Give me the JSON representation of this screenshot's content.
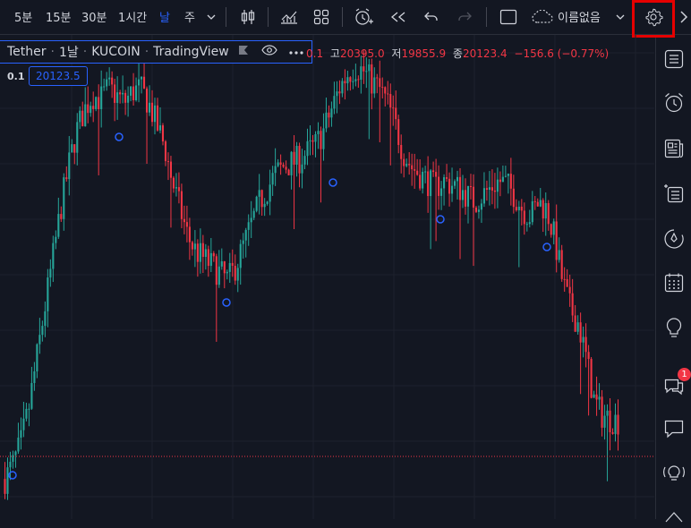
{
  "toolbar": {
    "timeframes": [
      "5분",
      "15분",
      "30분",
      "1시간",
      "날",
      "주"
    ],
    "active_timeframe": "날",
    "layout_name": "이름없음"
  },
  "legend": {
    "symbol": "Tether",
    "interval": "1날",
    "exchange": "KUCOIN",
    "source": "TradingView"
  },
  "ohlc": {
    "open_tail": "0.1",
    "high_label": "고",
    "high_value": "20395.0",
    "low_label": "저",
    "low_value": "19855.9",
    "close_label": "종",
    "close_value": "20123.4",
    "change": "−156.6 (−0.77%)"
  },
  "indicator": {
    "label": "0.1",
    "value": "20123.5"
  },
  "rightbar": {
    "notification_count": "1",
    "icons": [
      "watchlist-icon",
      "alarm-clock-icon",
      "news-icon",
      "data-window-icon",
      "hotlist-icon",
      "calendar-icon",
      "ideas-icon",
      "chat-icon",
      "messages-icon",
      "streams-icon"
    ]
  },
  "chart_data": {
    "type": "candlestick",
    "series_name": "Tether 1날 KUCOIN",
    "last_price": 20123.4,
    "close_path": [
      19300,
      19500,
      19800,
      20300,
      21000,
      21700,
      22400,
      23100,
      23700,
      24200,
      24500,
      24700,
      24650,
      24800,
      24700,
      24600,
      24750,
      24800,
      24600,
      24300,
      24000,
      23500,
      23100,
      22700,
      22500,
      22400,
      22300,
      22200,
      22100,
      22300,
      22600,
      22900,
      23200,
      23400,
      23600,
      23700,
      23750,
      23800,
      23900,
      24000,
      24200,
      24500,
      24800,
      25000,
      25100,
      25050,
      24900,
      24800,
      24600,
      24300,
      23900,
      23700,
      23600,
      23500,
      23400,
      23500,
      23450,
      23400,
      23300,
      23200,
      23300,
      23400,
      23500,
      23450,
      23300,
      23100,
      23000,
      23200,
      23100,
      22700,
      22100,
      21700,
      21500,
      21000,
      20400,
      20200,
      20150,
      20120
    ]
  },
  "colors": {
    "up": "#26a69a",
    "down": "#f23645",
    "accent": "#2962ff",
    "background": "#131722",
    "highlight_box": "#e60000"
  }
}
